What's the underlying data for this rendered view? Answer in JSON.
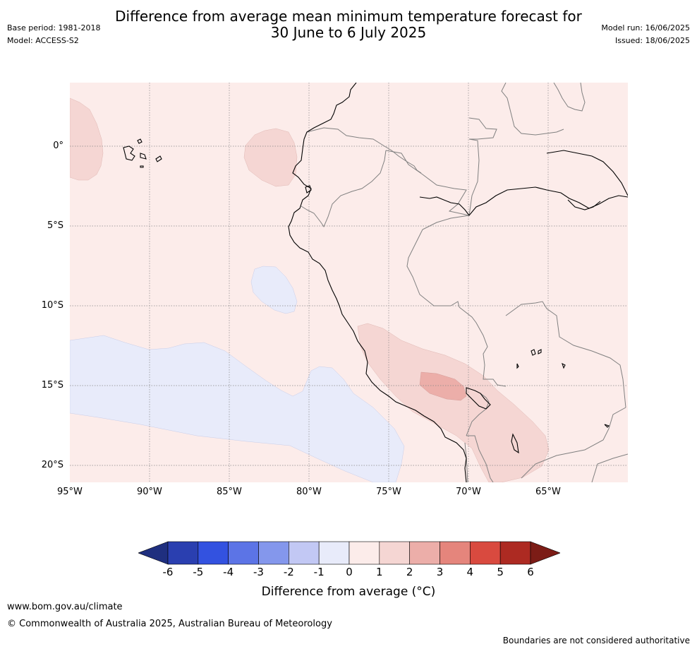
{
  "header": {
    "title_line1": "Difference from average mean minimum temperature forecast for",
    "title_line2": "30 June to 6 July 2025",
    "base_period": "Base period: 1981-2018",
    "model": "Model: ACCESS-S2",
    "model_run": "Model run: 16/06/2025",
    "issued": "Issued: 18/06/2025"
  },
  "map": {
    "lon_labels": [
      "95°W",
      "90°W",
      "85°W",
      "80°W",
      "75°W",
      "70°W",
      "65°W"
    ],
    "lat_labels": [
      "0°",
      "5°S",
      "10°S",
      "15°S",
      "20°S"
    ],
    "colors": {
      "ocean_land_0_1": "#fcecea",
      "anom_1_2": "#f5d6d3",
      "anom_2_3": "#ecaea9",
      "anom_m1_0": "#e8ebfa",
      "coast": "#000000",
      "border": "#808080",
      "grid": "#888888"
    }
  },
  "colorbar": {
    "ticks": [
      "-6",
      "-5",
      "-4",
      "-3",
      "-2",
      "-1",
      "0",
      "1",
      "2",
      "3",
      "4",
      "5",
      "6"
    ],
    "colors": [
      "#1f2f7f",
      "#2a3fb0",
      "#3352e0",
      "#5c74e6",
      "#8497ec",
      "#c2c8f4",
      "#e8ebfa",
      "#fcecea",
      "#f5d6d3",
      "#ecaea9",
      "#e5857c",
      "#d94a3f",
      "#ad2a22",
      "#7c1c16"
    ],
    "label": "Difference from average (°C)"
  },
  "footer": {
    "url": "www.bom.gov.au/climate",
    "copyright": "© Commonwealth of Australia 2025, Australian Bureau of Meteorology",
    "disclaimer": "Boundaries are not considered authoritative"
  }
}
